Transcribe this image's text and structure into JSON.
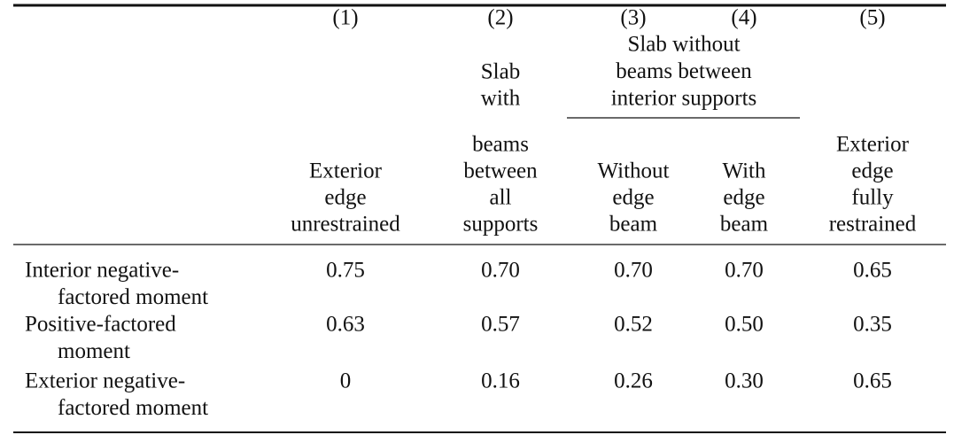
{
  "table": {
    "column_numbers": [
      "(1)",
      "(2)",
      "(3)",
      "(4)",
      "(5)"
    ],
    "group_header": [
      "Slab without",
      "beams between",
      "interior supports"
    ],
    "column_headers": [
      [
        "Exterior",
        "edge",
        "unrestrained"
      ],
      [
        "Slab",
        "with",
        "beams",
        "between",
        "all",
        "supports"
      ],
      [
        "Without",
        "edge",
        "beam"
      ],
      [
        "With",
        "edge",
        "beam"
      ],
      [
        "Exterior",
        "edge",
        "fully",
        "restrained"
      ]
    ],
    "rows": [
      {
        "label": [
          "Interior negative-",
          "factored moment"
        ],
        "values": [
          "0.75",
          "0.70",
          "0.70",
          "0.70",
          "0.65"
        ]
      },
      {
        "label": [
          "Positive-factored",
          "moment"
        ],
        "values": [
          "0.63",
          "0.57",
          "0.52",
          "0.50",
          "0.35"
        ]
      },
      {
        "label": [
          "Exterior negative-",
          "factored moment"
        ],
        "values": [
          "0",
          "0.16",
          "0.26",
          "0.30",
          "0.65"
        ]
      }
    ]
  }
}
